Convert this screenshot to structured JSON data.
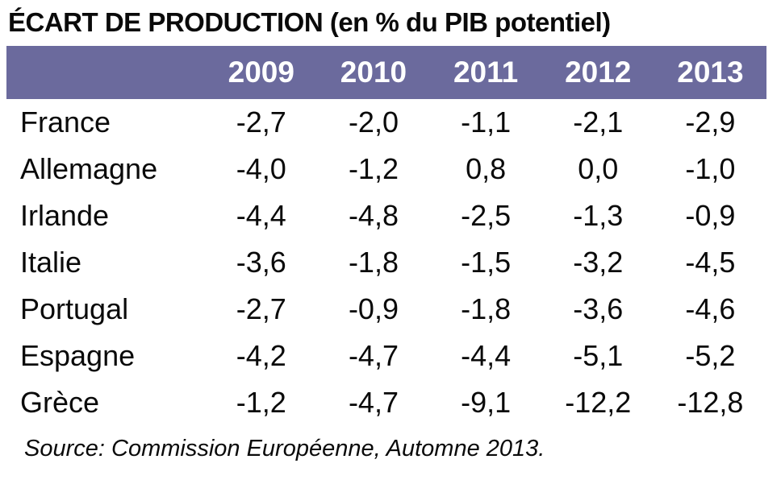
{
  "title": "ÉCART DE PRODUCTION (en % du PIB potentiel)",
  "source": "Source: Commission Européenne, Automne 2013.",
  "colors": {
    "header_bg": "#6b6a9d",
    "header_text": "#ffffff",
    "body_text": "#0a0a0a",
    "background": "#ffffff"
  },
  "chart_data": {
    "type": "table",
    "title": "ÉCART DE PRODUCTION (en % du PIB potentiel)",
    "unit": "% du PIB potentiel",
    "columns": [
      "2009",
      "2010",
      "2011",
      "2012",
      "2013"
    ],
    "rows": [
      {
        "label": "France",
        "values": [
          "-2,7",
          "-2,0",
          "-1,1",
          "-2,1",
          "-2,9"
        ]
      },
      {
        "label": "Allemagne",
        "values": [
          "-4,0",
          "-1,2",
          "0,8",
          "0,0",
          "-1,0"
        ]
      },
      {
        "label": "Irlande",
        "values": [
          "-4,4",
          "-4,8",
          "-2,5",
          "-1,3",
          "-0,9"
        ]
      },
      {
        "label": "Italie",
        "values": [
          "-3,6",
          "-1,8",
          "-1,5",
          "-3,2",
          "-4,5"
        ]
      },
      {
        "label": "Portugal",
        "values": [
          "-2,7",
          "-0,9",
          "-1,8",
          "-3,6",
          "-4,6"
        ]
      },
      {
        "label": "Espagne",
        "values": [
          "-4,2",
          "-4,7",
          "-4,4",
          "-5,1",
          "-5,2"
        ]
      },
      {
        "label": "Grèce",
        "values": [
          "-1,2",
          "-4,7",
          "-9,1",
          "-12,2",
          "-12,8"
        ]
      }
    ],
    "numeric_values": {
      "France": [
        -2.7,
        -2.0,
        -1.1,
        -2.1,
        -2.9
      ],
      "Allemagne": [
        -4.0,
        -1.2,
        0.8,
        0.0,
        -1.0
      ],
      "Irlande": [
        -4.4,
        -4.8,
        -2.5,
        -1.3,
        -0.9
      ],
      "Italie": [
        -3.6,
        -1.8,
        -1.5,
        -3.2,
        -4.5
      ],
      "Portugal": [
        -2.7,
        -0.9,
        -1.8,
        -3.6,
        -4.6
      ],
      "Espagne": [
        -4.2,
        -4.7,
        -4.4,
        -5.1,
        -5.2
      ],
      "Grèce": [
        -1.2,
        -4.7,
        -9.1,
        -12.2,
        -12.8
      ]
    },
    "source": "Source: Commission Européenne, Automne 2013."
  }
}
